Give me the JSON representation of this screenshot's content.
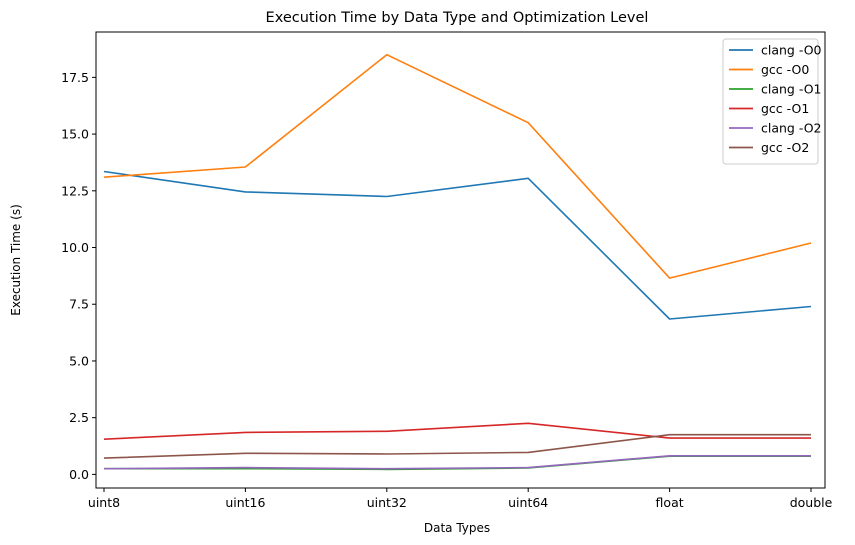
{
  "chart_data": {
    "type": "line",
    "title": "Execution Time by Data Type and Optimization Level",
    "xlabel": "Data Types",
    "ylabel": "Execution Time (s)",
    "categories": [
      "uint8",
      "uint16",
      "uint32",
      "uint64",
      "float",
      "double"
    ],
    "ylim": [
      -0.6,
      19.5
    ],
    "yticks": [
      0.0,
      2.5,
      5.0,
      7.5,
      10.0,
      12.5,
      15.0,
      17.5
    ],
    "ytick_labels": [
      "0.0",
      "2.5",
      "5.0",
      "7.5",
      "10.0",
      "12.5",
      "15.0",
      "17.5"
    ],
    "grid": false,
    "legend_position": "top-right",
    "series": [
      {
        "name": "clang -O0",
        "color": "#1f77b4",
        "values": [
          13.35,
          12.45,
          12.25,
          13.05,
          6.85,
          7.4
        ]
      },
      {
        "name": "gcc -O0",
        "color": "#ff7f0e",
        "values": [
          13.1,
          13.55,
          18.5,
          15.5,
          8.65,
          10.2
        ]
      },
      {
        "name": "clang -O1",
        "color": "#2ca02c",
        "values": [
          0.25,
          0.25,
          0.22,
          0.28,
          0.8,
          0.8
        ]
      },
      {
        "name": "gcc -O1",
        "color": "#d62728",
        "values": [
          1.55,
          1.85,
          1.9,
          2.25,
          1.6,
          1.6
        ]
      },
      {
        "name": "clang -O2",
        "color": "#9467bd",
        "values": [
          0.25,
          0.3,
          0.25,
          0.3,
          0.82,
          0.82
        ]
      },
      {
        "name": "gcc -O2",
        "color": "#8c564b",
        "values": [
          0.72,
          0.93,
          0.9,
          0.97,
          1.75,
          1.75
        ]
      }
    ]
  }
}
